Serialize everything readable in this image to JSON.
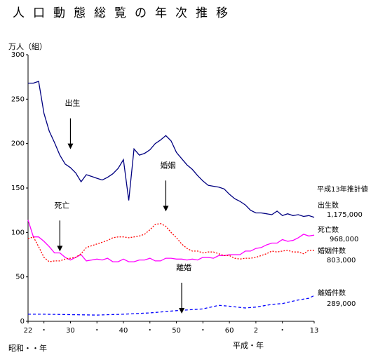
{
  "chart_data": {
    "type": "line",
    "title": "人口動態総覧の年次推移",
    "ylabel": "万人（組）",
    "ylim": [
      0,
      300
    ],
    "yticks": [
      0,
      50,
      100,
      150,
      200,
      250,
      300
    ],
    "x_range": [
      1947,
      2001
    ],
    "x_ticks": [
      {
        "x": 1947,
        "label": "22"
      },
      {
        "x": 1950,
        "label": "・"
      },
      {
        "x": 1955,
        "label": "30"
      },
      {
        "x": 1960,
        "label": "・"
      },
      {
        "x": 1965,
        "label": "40"
      },
      {
        "x": 1970,
        "label": "・"
      },
      {
        "x": 1975,
        "label": "50"
      },
      {
        "x": 1980,
        "label": "・"
      },
      {
        "x": 1985,
        "label": "60"
      },
      {
        "x": 1990,
        "label": "2"
      },
      {
        "x": 1995,
        "label": "・"
      },
      {
        "x": 2001,
        "label": "13"
      }
    ],
    "era_label_showa": "昭和・・年",
    "era_label_heisei": "平成・年",
    "forecast_note": "平成13年推計値",
    "series": [
      {
        "name": "出生",
        "color": "#000080",
        "style": "solid",
        "x": [
          1947,
          1948,
          1949,
          1950,
          1951,
          1952,
          1953,
          1954,
          1955,
          1956,
          1957,
          1958,
          1959,
          1960,
          1961,
          1962,
          1963,
          1964,
          1965,
          1966,
          1967,
          1968,
          1969,
          1970,
          1971,
          1972,
          1973,
          1974,
          1975,
          1976,
          1977,
          1978,
          1979,
          1980,
          1981,
          1982,
          1983,
          1984,
          1985,
          1986,
          1987,
          1988,
          1989,
          1990,
          1991,
          1992,
          1993,
          1994,
          1995,
          1996,
          1997,
          1998,
          1999,
          2000,
          2001
        ],
        "values": [
          268,
          268,
          270,
          234,
          214,
          201,
          187,
          177,
          173,
          167,
          157,
          165,
          163,
          161,
          159,
          162,
          166,
          172,
          182,
          136,
          194,
          187,
          189,
          193,
          200,
          204,
          209,
          203,
          190,
          183,
          176,
          171,
          164,
          158,
          153,
          152,
          151,
          149,
          143,
          138,
          135,
          131,
          125,
          122,
          122,
          121,
          120,
          124,
          119,
          121,
          119,
          120,
          118,
          119,
          117
        ]
      },
      {
        "name": "死亡",
        "color": "#ff00ff",
        "style": "solid",
        "x": [
          1947,
          1948,
          1949,
          1950,
          1951,
          1952,
          1953,
          1954,
          1955,
          1956,
          1957,
          1958,
          1959,
          1960,
          1961,
          1962,
          1963,
          1964,
          1965,
          1966,
          1967,
          1968,
          1969,
          1970,
          1971,
          1972,
          1973,
          1974,
          1975,
          1976,
          1977,
          1978,
          1979,
          1980,
          1981,
          1982,
          1983,
          1984,
          1985,
          1986,
          1987,
          1988,
          1989,
          1990,
          1991,
          1992,
          1993,
          1994,
          1995,
          1996,
          1997,
          1998,
          1999,
          2000,
          2001
        ],
        "values": [
          114,
          95,
          95,
          90,
          84,
          77,
          77,
          72,
          69,
          72,
          75,
          68,
          69,
          70,
          69,
          71,
          67,
          67,
          70,
          67,
          67,
          69,
          69,
          71,
          68,
          68,
          71,
          71,
          70,
          70,
          69,
          70,
          69,
          72,
          72,
          71,
          74,
          74,
          75,
          75,
          75,
          79,
          79,
          82,
          83,
          86,
          88,
          88,
          92,
          90,
          91,
          94,
          98,
          96,
          97
        ]
      },
      {
        "name": "婚姻",
        "color": "#ff0000",
        "style": "dotted",
        "x": [
          1947,
          1948,
          1949,
          1950,
          1951,
          1952,
          1953,
          1954,
          1955,
          1956,
          1957,
          1958,
          1959,
          1960,
          1961,
          1962,
          1963,
          1964,
          1965,
          1966,
          1967,
          1968,
          1969,
          1970,
          1971,
          1972,
          1973,
          1974,
          1975,
          1976,
          1977,
          1978,
          1979,
          1980,
          1981,
          1982,
          1983,
          1984,
          1985,
          1986,
          1987,
          1988,
          1989,
          1990,
          1991,
          1992,
          1993,
          1994,
          1995,
          1996,
          1997,
          1998,
          1999,
          2000,
          2001
        ],
        "values": [
          93,
          95,
          84,
          72,
          67,
          68,
          68,
          70,
          71,
          72,
          76,
          83,
          85,
          87,
          89,
          91,
          94,
          95,
          95,
          94,
          95,
          96,
          98,
          103,
          109,
          110,
          107,
          100,
          94,
          87,
          82,
          79,
          79,
          77,
          78,
          78,
          76,
          74,
          74,
          71,
          70,
          71,
          71,
          72,
          74,
          76,
          79,
          78,
          79,
          80,
          78,
          78,
          76,
          80,
          80
        ]
      },
      {
        "name": "離婚",
        "color": "#0000ff",
        "style": "dashed",
        "x": [
          1947,
          1950,
          1955,
          1960,
          1965,
          1970,
          1975,
          1980,
          1983,
          1985,
          1988,
          1990,
          1993,
          1995,
          1998,
          2000,
          2001
        ],
        "values": [
          8,
          8,
          7.5,
          7,
          8,
          9.5,
          12,
          14,
          18,
          17,
          15,
          16,
          19,
          20,
          24,
          26,
          29
        ]
      }
    ],
    "annotations": [
      {
        "text": "出生",
        "x": 1955,
        "y": 230
      },
      {
        "text": "婚姻",
        "x": 1973,
        "y": 160
      },
      {
        "text": "死亡",
        "x": 1953,
        "y": 115
      },
      {
        "text": "離婚",
        "x": 1976,
        "y": 45
      }
    ],
    "end_labels": [
      {
        "series": "出生数",
        "value": "1,175,000"
      },
      {
        "series": "死亡数",
        "value": "968,000"
      },
      {
        "series": "婚姻件数",
        "value": "803,000"
      },
      {
        "series": "離婚件数",
        "value": "289,000"
      }
    ]
  }
}
